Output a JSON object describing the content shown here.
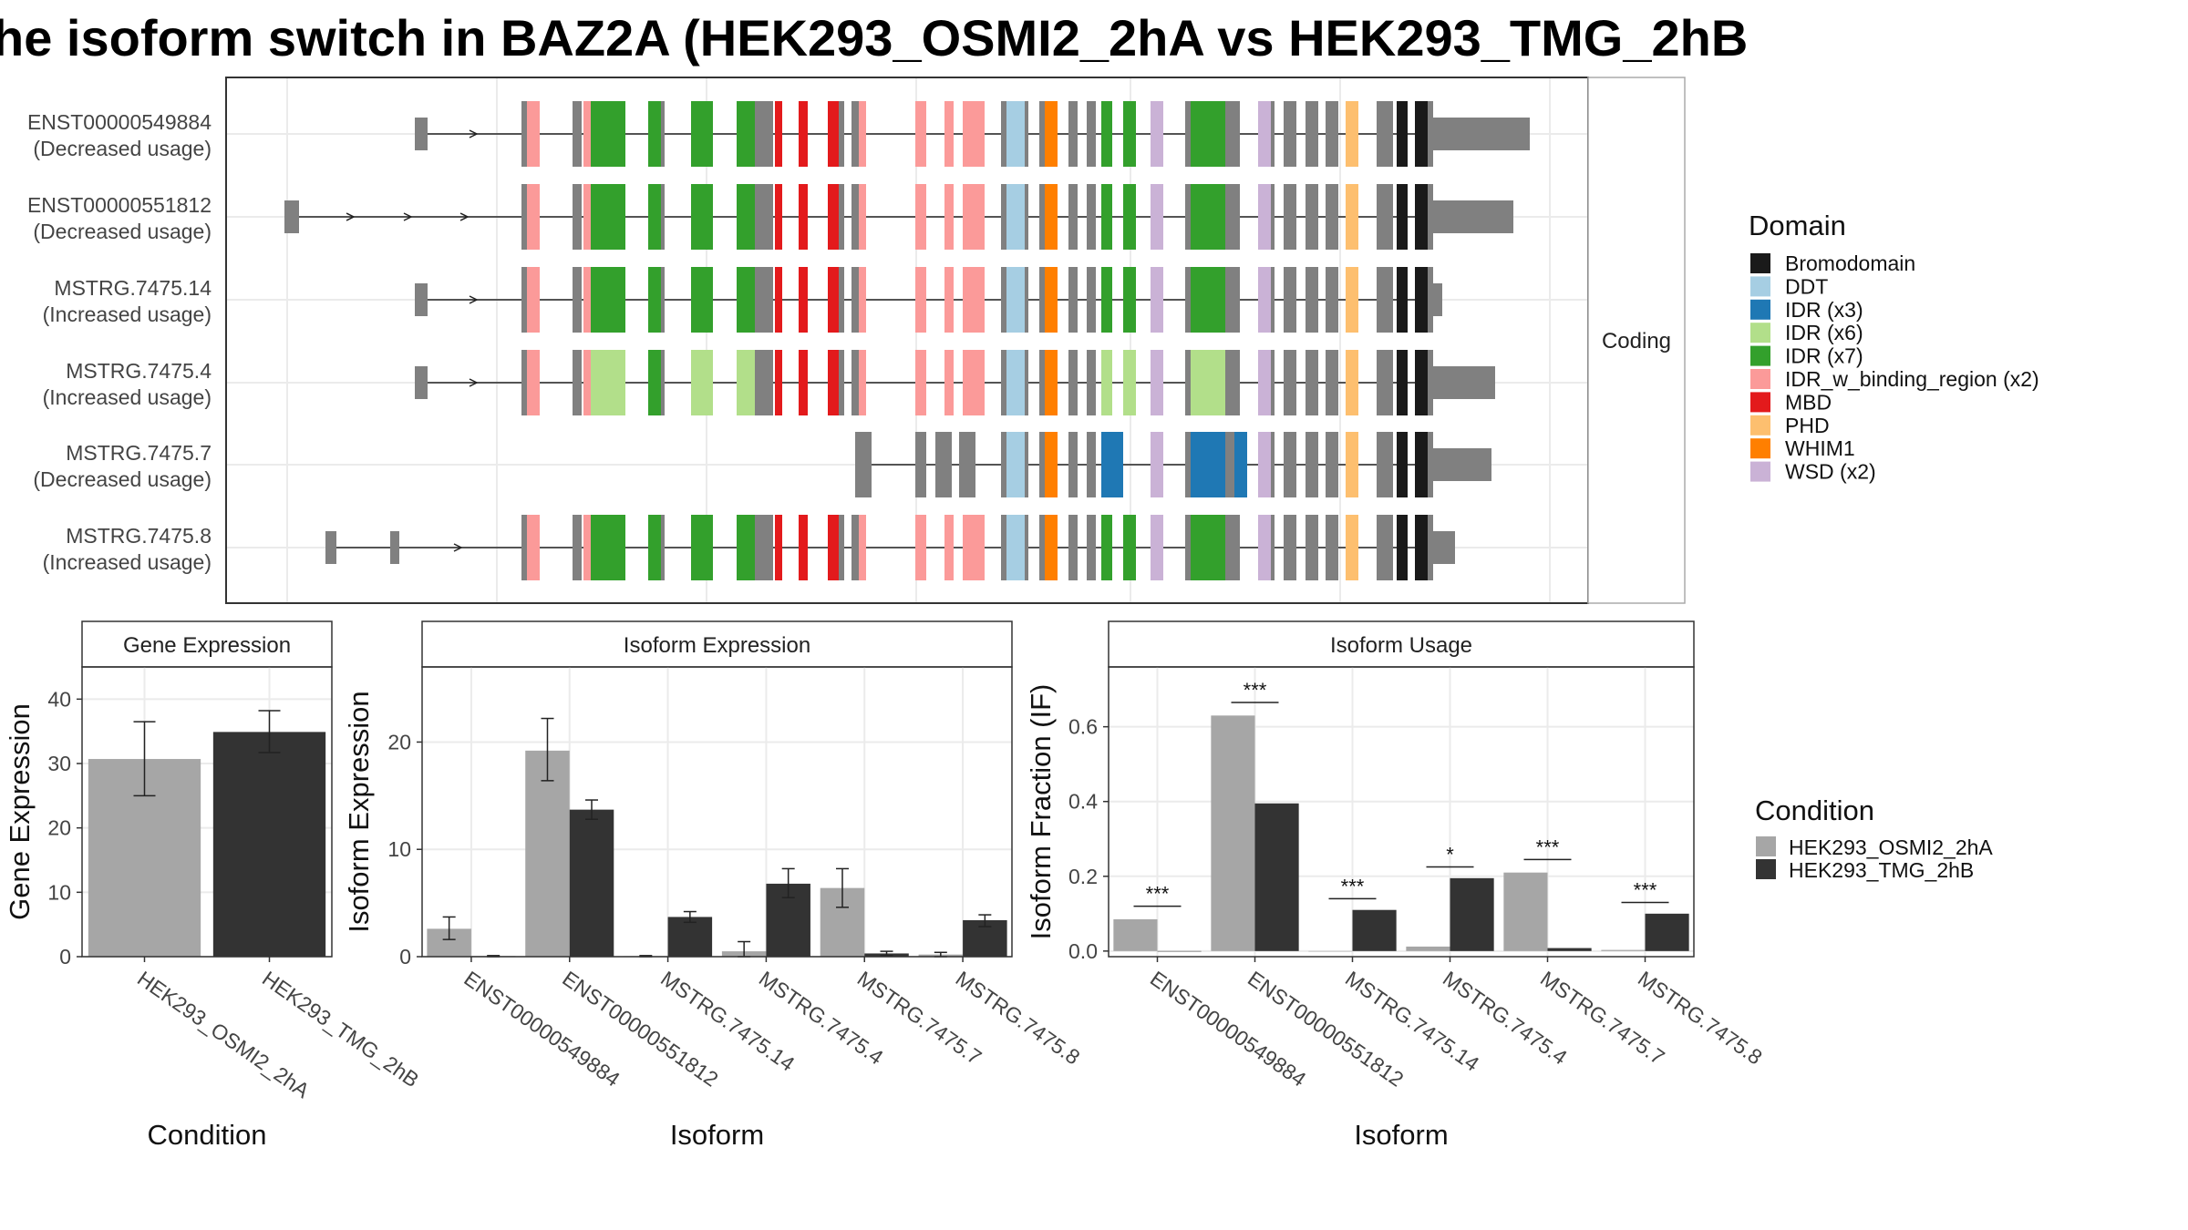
{
  "title": "he isoform switch in BAZ2A (HEK293_OSMI2_2hA vs HEK293_TMG_2hB",
  "transcript_panel": {
    "facet_label": "Coding",
    "transcripts": [
      {
        "id": "ENST00000549884",
        "usage": "(Decreased usage)"
      },
      {
        "id": "ENST00000551812",
        "usage": "(Decreased usage)"
      },
      {
        "id": "MSTRG.7475.14",
        "usage": "(Increased usage)"
      },
      {
        "id": "MSTRG.7475.4",
        "usage": "(Increased usage)"
      },
      {
        "id": "MSTRG.7475.7",
        "usage": "(Decreased usage)"
      },
      {
        "id": "MSTRG.7475.8",
        "usage": "(Increased usage)"
      }
    ]
  },
  "domain_legend": {
    "title": "Domain",
    "items": [
      {
        "label": "Bromodomain",
        "color": "#1a1a1a"
      },
      {
        "label": "DDT",
        "color": "#a6cee3"
      },
      {
        "label": "IDR (x3)",
        "color": "#1f78b4"
      },
      {
        "label": "IDR (x6)",
        "color": "#b2df8a"
      },
      {
        "label": "IDR (x7)",
        "color": "#33a02c"
      },
      {
        "label": "IDR_w_binding_region (x2)",
        "color": "#fb9a99"
      },
      {
        "label": "MBD",
        "color": "#e31a1c"
      },
      {
        "label": "PHD",
        "color": "#fdbf6f"
      },
      {
        "label": "WHIM1",
        "color": "#ff7f00"
      },
      {
        "label": "WSD (x2)",
        "color": "#cab2d6"
      }
    ]
  },
  "condition_legend": {
    "title": "Condition",
    "items": [
      {
        "label": "HEK293_OSMI2_2hA",
        "color": "#a6a6a6"
      },
      {
        "label": "HEK293_TMG_2hB",
        "color": "#333333"
      }
    ]
  },
  "chart_data": [
    {
      "type": "bar",
      "title": "Gene Expression",
      "xlabel": "Condition",
      "ylabel": "Gene Expression",
      "categories": [
        "HEK293_OSMI2_2hA",
        "HEK293_TMG_2hB"
      ],
      "values": [
        30.7,
        34.9
      ],
      "error_low": [
        25.0,
        31.7
      ],
      "error_high": [
        36.5,
        38.2
      ],
      "colors": [
        "#a6a6a6",
        "#333333"
      ],
      "ylim": [
        0,
        45
      ],
      "yticks": [
        0,
        10,
        20,
        30,
        40
      ],
      "grid": true
    },
    {
      "type": "bar",
      "title": "Isoform Expression",
      "xlabel": "Isoform",
      "ylabel": "Isoform Expression",
      "categories": [
        "ENST00000549884",
        "ENST00000551812",
        "MSTRG.7475.14",
        "MSTRG.7475.4",
        "MSTRG.7475.7",
        "MSTRG.7475.8"
      ],
      "series": [
        {
          "name": "HEK293_OSMI2_2hA",
          "color": "#a6a6a6",
          "values": [
            2.6,
            19.2,
            0.05,
            0.5,
            6.4,
            0.2
          ],
          "err_low": [
            1.6,
            16.4,
            0.0,
            0.0,
            4.6,
            0.0
          ],
          "err_high": [
            3.7,
            22.2,
            0.1,
            1.4,
            8.2,
            0.4
          ]
        },
        {
          "name": "HEK293_TMG_2hB",
          "color": "#333333",
          "values": [
            0.05,
            13.7,
            3.7,
            6.8,
            0.3,
            3.4
          ],
          "err_low": [
            0.0,
            12.8,
            3.2,
            5.5,
            0.1,
            2.8
          ],
          "err_high": [
            0.1,
            14.6,
            4.2,
            8.2,
            0.5,
            3.9
          ]
        }
      ],
      "ylim": [
        0,
        27
      ],
      "yticks": [
        0,
        10,
        20
      ],
      "grid": true
    },
    {
      "type": "bar",
      "title": "Isoform Usage",
      "xlabel": "Isoform",
      "ylabel": "Isoform Fraction (IF)",
      "categories": [
        "ENST00000549884",
        "ENST00000551812",
        "MSTRG.7475.14",
        "MSTRG.7475.4",
        "MSTRG.7475.7",
        "MSTRG.7475.8"
      ],
      "series": [
        {
          "name": "HEK293_OSMI2_2hA",
          "color": "#a6a6a6",
          "values": [
            0.085,
            0.63,
            0.0,
            0.012,
            0.21,
            0.003
          ]
        },
        {
          "name": "HEK293_TMG_2hB",
          "color": "#333333",
          "values": [
            0.0,
            0.395,
            0.11,
            0.195,
            0.008,
            0.1
          ]
        }
      ],
      "significance": [
        "***",
        "***",
        "***",
        "*",
        "***",
        "***"
      ],
      "sig_line_y": [
        0.12,
        0.665,
        0.14,
        0.225,
        0.245,
        0.13
      ],
      "ylim": [
        -0.015,
        0.76
      ],
      "yticks": [
        0.0,
        0.2,
        0.4,
        0.6
      ],
      "ytick_labels": [
        "0.0",
        "0.2",
        "0.4",
        "0.6"
      ],
      "grid": true
    }
  ]
}
